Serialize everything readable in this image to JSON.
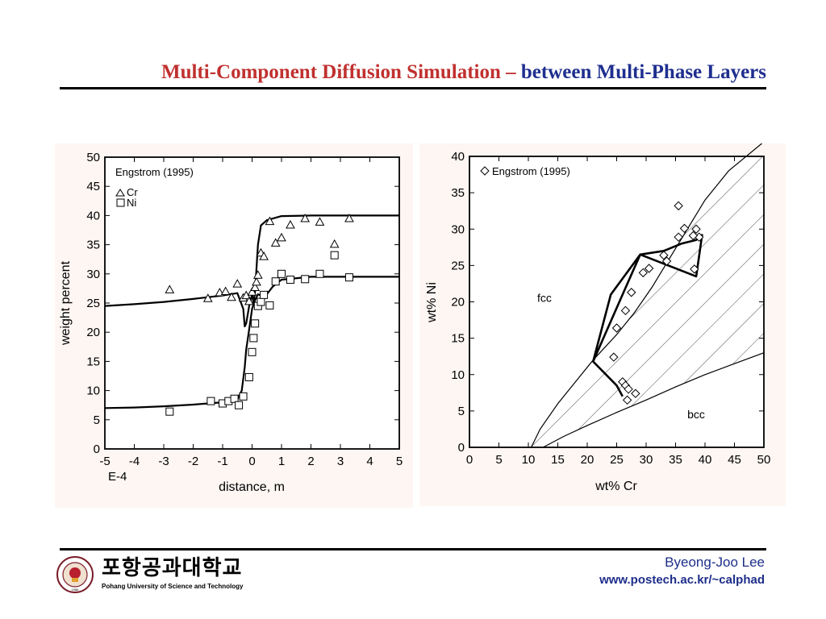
{
  "slide": {
    "title_part1": "Multi-Component Diffusion Simulation ",
    "title_dash": "–",
    "title_part2": " between Multi-Phase Layers",
    "author": "Byeong-Joo Lee",
    "url": "www.postech.ac.kr/~calphad",
    "university_korean": "포항공과대학교",
    "university_english": "Pohang University of Science and Technology",
    "logo_year": "1986"
  },
  "chart_data": [
    {
      "type": "line",
      "xlabel": "distance, m",
      "ylabel": "weight percent",
      "x_scale_note": "E-4",
      "xlim": [
        -5,
        5
      ],
      "ylim": [
        0,
        50
      ],
      "x_ticks": [
        "-5",
        "-4",
        "-3",
        "-2",
        "-1",
        "0",
        "1",
        "2",
        "3",
        "4",
        "5"
      ],
      "y_ticks": [
        "0",
        "5",
        "10",
        "15",
        "20",
        "25",
        "30",
        "35",
        "40",
        "45",
        "50"
      ],
      "legend_title": "Engstrom (1995)",
      "legend_position": "top-left",
      "legend_items": [
        {
          "symbol": "triangle",
          "label": "Cr"
        },
        {
          "symbol": "square",
          "label": "Ni"
        }
      ],
      "series": [
        {
          "name": "Cr",
          "kind": "line",
          "x": [
            -5,
            -4,
            -3,
            -2,
            -1,
            -0.5,
            -0.3,
            -0.25,
            -0.2,
            -0.1,
            0,
            0.05,
            0.1,
            0.15,
            0.2,
            0.3,
            0.5,
            1,
            2,
            3,
            5
          ],
          "y": [
            24.5,
            24.8,
            25.2,
            25.7,
            26.3,
            26.7,
            24,
            21,
            21.5,
            24.5,
            26.5,
            25,
            27,
            31,
            35,
            38.3,
            39.2,
            39.9,
            40,
            40,
            40
          ]
        },
        {
          "name": "Ni",
          "kind": "line",
          "x": [
            -5,
            -4,
            -3,
            -2,
            -1,
            -0.5,
            -0.35,
            -0.25,
            -0.2,
            -0.1,
            0,
            0.1,
            0.2,
            0.3,
            0.5,
            0.7,
            1,
            2,
            3,
            5
          ],
          "y": [
            7,
            7.1,
            7.3,
            7.6,
            8,
            8.5,
            10,
            14,
            17,
            20.5,
            24,
            25.5,
            26.5,
            26.3,
            26.5,
            27.8,
            29,
            29.5,
            29.5,
            29.5
          ]
        },
        {
          "name": "Cr",
          "kind": "triangle",
          "x": [
            -2.8,
            -1.5,
            -1.1,
            -0.9,
            -0.7,
            -0.5,
            -0.3,
            -0.2,
            -0.1,
            0,
            0.1,
            0.15,
            0.2,
            0.3,
            0.4,
            0.6,
            0.8,
            1.0,
            1.3,
            1.8,
            2.3,
            2.8,
            3.3
          ],
          "y": [
            27.3,
            25.8,
            26.8,
            27,
            26,
            28.3,
            25.9,
            26.3,
            25.3,
            26.9,
            27.7,
            28.6,
            29.8,
            33.6,
            33,
            39,
            35.3,
            36.2,
            38.4,
            39.5,
            38.9,
            35.1,
            39.5
          ]
        },
        {
          "name": "Ni",
          "kind": "square",
          "x": [
            -2.8,
            -1.4,
            -1.0,
            -0.8,
            -0.6,
            -0.45,
            -0.3,
            -0.1,
            0,
            0.05,
            0.1,
            0.2,
            0.3,
            0.4,
            0.6,
            0.8,
            1.0,
            1.3,
            1.8,
            2.3,
            2.8,
            3.3
          ],
          "y": [
            6.4,
            8.2,
            7.8,
            8.2,
            8.6,
            7.5,
            9,
            12.3,
            16.6,
            19,
            21.5,
            24.5,
            25.2,
            26.4,
            24.6,
            28.7,
            30,
            29,
            29.1,
            30,
            33.2,
            29.4
          ]
        }
      ]
    },
    {
      "type": "scatter",
      "xlabel": "wt% Cr",
      "ylabel": "wt% Ni",
      "xlim": [
        0,
        50
      ],
      "ylim": [
        0,
        40
      ],
      "x_ticks": [
        "0",
        "5",
        "10",
        "15",
        "20",
        "25",
        "30",
        "35",
        "40",
        "45",
        "50"
      ],
      "y_ticks": [
        "0",
        "5",
        "10",
        "15",
        "20",
        "25",
        "30",
        "35",
        "40"
      ],
      "legend_title": "Engstrom (1995)",
      "legend_symbol": "diamond",
      "legend_position": "top-left",
      "region_labels": [
        {
          "text": "fcc",
          "x": 11.5,
          "y": 20
        },
        {
          "text": "bcc",
          "x": 37,
          "y": 4
        }
      ],
      "phase_boundaries": [
        {
          "name": "fcc/fcc+bcc",
          "x": [
            10.5,
            12,
            15,
            18,
            21,
            25,
            28,
            31,
            34,
            37,
            40,
            44,
            50
          ],
          "y": [
            0,
            2.5,
            6,
            9,
            12,
            15.5,
            18.5,
            22,
            26,
            30,
            34,
            38,
            42
          ]
        },
        {
          "name": "bcc/fcc+bcc",
          "x": [
            12.5,
            16,
            20,
            25,
            30,
            35,
            40,
            45,
            50
          ],
          "y": [
            0,
            1.5,
            3,
            4.8,
            6.5,
            8.3,
            10,
            11.5,
            13
          ]
        }
      ],
      "diffusion_path": {
        "x": [
          26,
          25,
          21,
          24,
          29,
          38.5,
          39.5,
          39,
          38.5,
          36,
          33,
          29,
          26,
          21
        ],
        "y": [
          7,
          8.5,
          11.8,
          21,
          26.5,
          23.5,
          29.2,
          29,
          28.5,
          28,
          27,
          26.5,
          21,
          11.8
        ]
      },
      "points": {
        "x": [
          35.5,
          36.5,
          38.5,
          39.0,
          35.5,
          38.0,
          33.0,
          33.5,
          30.5,
          29.5,
          27.5,
          26.5,
          25.0,
          24.5,
          26.0,
          26.5,
          27.0,
          26.8,
          28.2,
          38.2
        ],
        "y": [
          33.2,
          30.1,
          30,
          28.9,
          28.9,
          29.1,
          26.4,
          25.6,
          24.6,
          24,
          21.3,
          18.8,
          16.4,
          12.4,
          9.0,
          8.5,
          8.0,
          6.5,
          7.4,
          24.5
        ]
      }
    }
  ]
}
